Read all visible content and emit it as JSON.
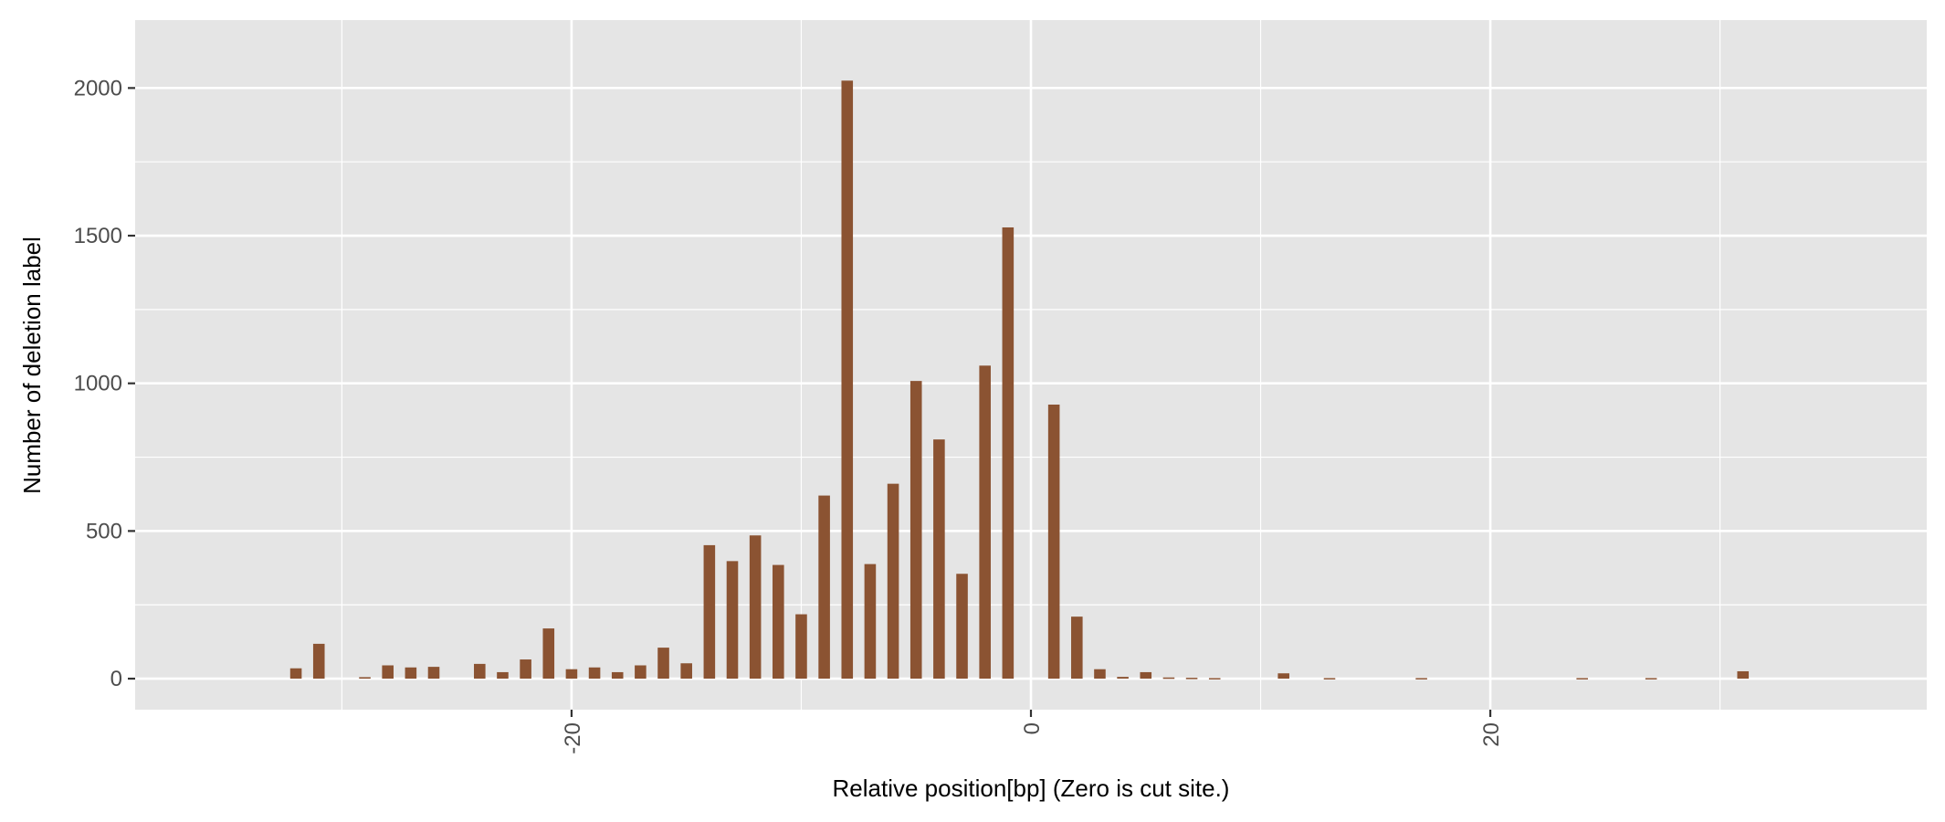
{
  "chart_data": {
    "type": "bar",
    "xlabel": "Relative position[bp] (Zero is cut site.)",
    "ylabel": "Number of deletion label",
    "xlim": [
      -39,
      39
    ],
    "ylim": [
      -105,
      2230
    ],
    "x_ticks": [
      -20,
      0,
      20
    ],
    "y_ticks": [
      0,
      500,
      1000,
      1500,
      2000
    ],
    "x_tick_labels": [
      "-20",
      "0",
      "20"
    ],
    "y_tick_labels": [
      "0",
      "500",
      "1000",
      "1500",
      "2000"
    ],
    "x_tick_label_rotation": "vertical",
    "grid": true,
    "colors": {
      "panel": "#e5e5e5",
      "grid": "#ffffff",
      "bar": "#8b5332",
      "tick_mark": "#333333"
    },
    "x": [
      -32,
      -31,
      -29,
      -28,
      -27,
      -26,
      -24,
      -23,
      -22,
      -21,
      -20,
      -19,
      -18,
      -17,
      -16,
      -15,
      -14,
      -13,
      -12,
      -11,
      -10,
      -9,
      -8,
      -7,
      -6,
      -5,
      -4,
      -3,
      -2,
      -1,
      1,
      2,
      3,
      4,
      5,
      6,
      7,
      8,
      11,
      13,
      17,
      24,
      27,
      31
    ],
    "values": [
      35,
      118,
      5,
      45,
      38,
      40,
      50,
      22,
      65,
      170,
      32,
      38,
      22,
      45,
      105,
      52,
      452,
      398,
      485,
      385,
      218,
      620,
      2025,
      388,
      660,
      1008,
      810,
      355,
      1060,
      1528,
      928,
      210,
      32,
      6,
      22,
      4,
      3,
      2,
      18,
      2,
      2,
      2,
      2,
      25
    ]
  }
}
